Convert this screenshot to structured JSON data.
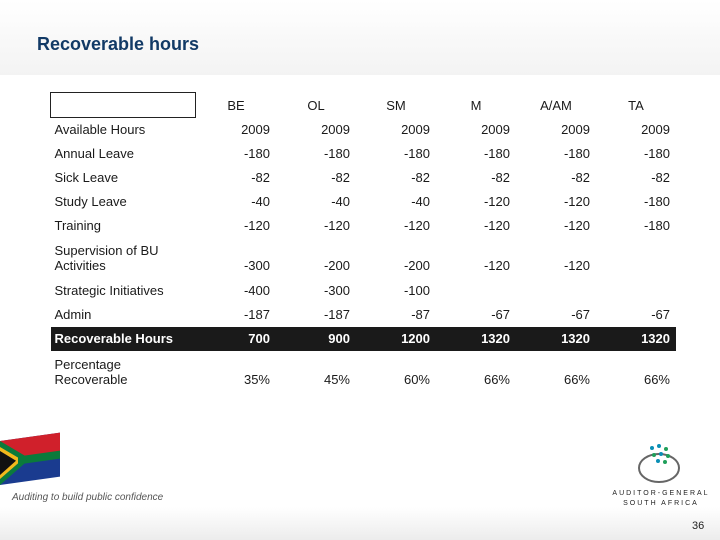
{
  "slide": {
    "title": "Recoverable hours",
    "page_number": "36",
    "tagline": "Auditing to build public confidence",
    "logo_text_line1": "AUDITOR-GENERAL",
    "logo_text_line2": "SOUTH AFRICA"
  },
  "table": {
    "columns": [
      "BE",
      "OL",
      "SM",
      "M",
      "A/AM",
      "TA"
    ],
    "rows": [
      {
        "label": "Available Hours",
        "values": [
          "2009",
          "2009",
          "2009",
          "2009",
          "2009",
          "2009"
        ]
      },
      {
        "label": "Annual Leave",
        "values": [
          "-180",
          "-180",
          "-180",
          "-180",
          "-180",
          "-180"
        ]
      },
      {
        "label": "Sick Leave",
        "values": [
          "-82",
          "-82",
          "-82",
          "-82",
          "-82",
          "-82"
        ]
      },
      {
        "label": "Study Leave",
        "values": [
          "-40",
          "-40",
          "-40",
          "-120",
          "-120",
          "-180"
        ]
      },
      {
        "label": "Training",
        "values": [
          "-120",
          "-120",
          "-120",
          "-120",
          "-120",
          "-180"
        ]
      },
      {
        "label": "Supervision of BU Activities",
        "values": [
          "-300",
          "-200",
          "-200",
          "-120",
          "-120",
          ""
        ]
      },
      {
        "label": "Strategic  Initiatives",
        "values": [
          "-400",
          "-300",
          "-100",
          "",
          "",
          ""
        ]
      },
      {
        "label": "Admin",
        "values": [
          "-187",
          "-187",
          "-87",
          "-67",
          "-67",
          "-67"
        ]
      },
      {
        "label": "Recoverable Hours",
        "values": [
          "700",
          "900",
          "1200",
          "1320",
          "1320",
          "1320"
        ]
      },
      {
        "label": "Percentage Recoverable",
        "values": [
          "35%",
          "45%",
          "60%",
          "66%",
          "66%",
          "66%"
        ]
      }
    ]
  },
  "colors": {
    "title": "#123a66",
    "highlight_row": "#1a1a1a"
  }
}
